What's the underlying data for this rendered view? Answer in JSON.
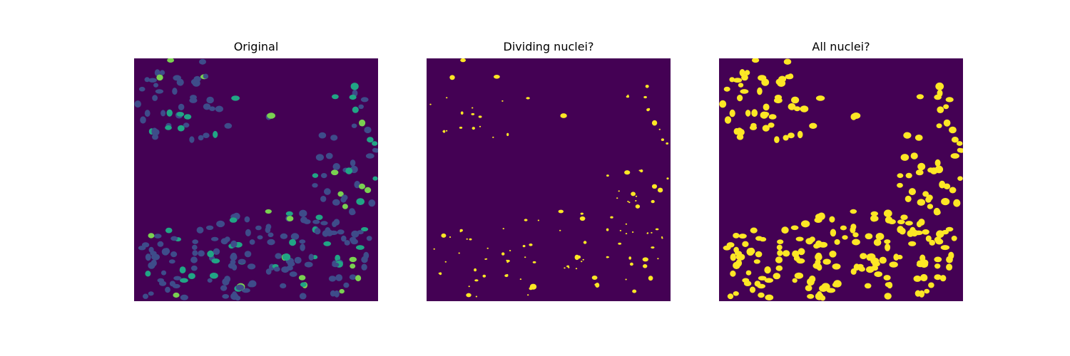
{
  "panels": [
    {
      "title": "Original",
      "image": "fluorescence-microscopy-nuclei"
    },
    {
      "title": "Dividing nuclei?",
      "image": "binary-mask-dividing-nuclei"
    },
    {
      "title": "All nuclei?",
      "image": "binary-mask-all-nuclei"
    }
  ],
  "colors": {
    "background": "#440154",
    "dim_nucleus": "#3e4c8a",
    "bright_nucleus": "#21a585",
    "brightest_nucleus": "#7ad151",
    "mask": "#fde725"
  }
}
